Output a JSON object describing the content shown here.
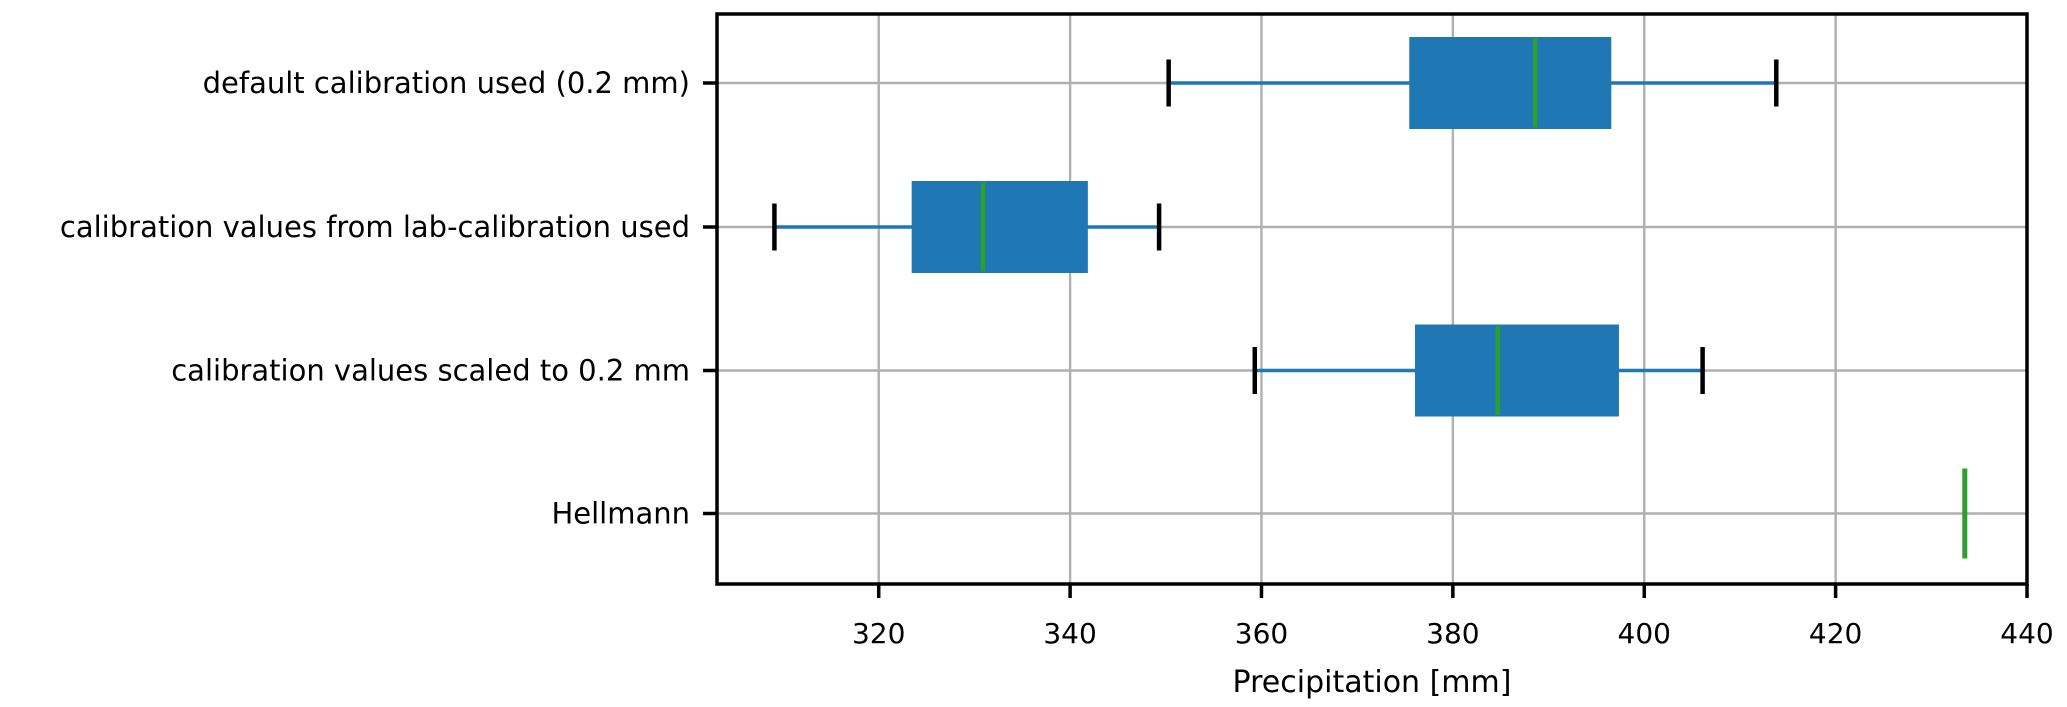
{
  "figure": {
    "background": "#ffffff"
  },
  "chart_data": {
    "type": "boxplot",
    "orientation": "horizontal",
    "title": "",
    "xlabel": "Precipitation [mm]",
    "ylabel": "",
    "xticks": [
      320,
      340,
      360,
      380,
      400,
      420,
      440
    ],
    "xlim": [
      303.1,
      440.0
    ],
    "grid": true,
    "legend": "none",
    "categories": [
      "default calibration used (0.2 mm)",
      "calibration values from lab-calibration used",
      "calibration values scaled to 0.2 mm",
      "Hellmann"
    ],
    "series": [
      {
        "label": "default calibration used (0.2 mm)",
        "whisker_low": 350.3,
        "q1": 375.6,
        "median": 388.6,
        "q3": 396.4,
        "whisker_high": 413.8,
        "single_value": false
      },
      {
        "label": "calibration values from lab-calibration used",
        "whisker_low": 309.1,
        "q1": 323.6,
        "median": 330.9,
        "q3": 341.7,
        "whisker_high": 349.3,
        "single_value": false
      },
      {
        "label": "calibration values scaled to 0.2 mm",
        "whisker_low": 359.3,
        "q1": 376.2,
        "median": 384.7,
        "q3": 397.2,
        "whisker_high": 406.1,
        "single_value": false
      },
      {
        "label": "Hellmann",
        "whisker_low": 433.5,
        "q1": 433.5,
        "median": 433.5,
        "q3": 433.5,
        "whisker_high": 433.5,
        "single_value": true
      }
    ],
    "colors": {
      "box_fill": "#1f77b4",
      "whisker": "#1f77b4",
      "cap": "#000000",
      "median": "#2ca02c",
      "grid": "#b0b0b0",
      "axis": "#000000",
      "text": "#000000",
      "background": "#ffffff"
    }
  }
}
